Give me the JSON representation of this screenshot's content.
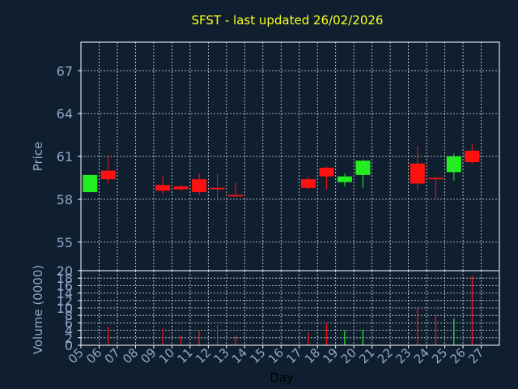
{
  "colors": {
    "background": "#0f1f30",
    "title": "#ffff22",
    "axis_text": "#8fa8c8",
    "grid": "#ffffff",
    "frame": "#ffffff",
    "up": "#22ee22",
    "down": "#ff1111"
  },
  "chart_data": [
    {
      "type": "candlestick",
      "title": "SFST - last updated 26/02/2026",
      "ylabel": "Price",
      "ylim": [
        53.0,
        69.0
      ],
      "yticks": [
        55,
        58,
        61,
        64,
        67
      ],
      "x_ticks": [
        "05",
        "06",
        "07",
        "08",
        "09",
        "10",
        "11",
        "12",
        "13",
        "14",
        "15",
        "16",
        "17",
        "18",
        "19",
        "20",
        "21",
        "22",
        "23",
        "24",
        "25",
        "26",
        "27"
      ],
      "grid": true,
      "candles": [
        {
          "day": "05",
          "open": 58.5,
          "high": 59.7,
          "low": 58.5,
          "close": 59.7
        },
        {
          "day": "06",
          "open": 60.0,
          "high": 61.1,
          "low": 59.1,
          "close": 59.4
        },
        {
          "day": "09",
          "open": 59.0,
          "high": 59.6,
          "low": 58.4,
          "close": 58.6
        },
        {
          "day": "10",
          "open": 58.9,
          "high": 59.0,
          "low": 58.6,
          "close": 58.7
        },
        {
          "day": "11",
          "open": 59.4,
          "high": 59.8,
          "low": 58.3,
          "close": 58.5
        },
        {
          "day": "12",
          "open": 58.8,
          "high": 59.8,
          "low": 57.9,
          "close": 58.7
        },
        {
          "day": "13",
          "open": 58.3,
          "high": 59.2,
          "low": 58.2,
          "close": 58.2
        },
        {
          "day": "17",
          "open": 59.4,
          "high": 59.6,
          "low": 58.7,
          "close": 58.8
        },
        {
          "day": "18",
          "open": 60.2,
          "high": 60.3,
          "low": 58.7,
          "close": 59.6
        },
        {
          "day": "19",
          "open": 59.2,
          "high": 59.8,
          "low": 58.9,
          "close": 59.6
        },
        {
          "day": "20",
          "open": 59.7,
          "high": 60.8,
          "low": 58.8,
          "close": 60.7
        },
        {
          "day": "23",
          "open": 60.5,
          "high": 61.7,
          "low": 58.7,
          "close": 59.1
        },
        {
          "day": "24",
          "open": 59.5,
          "high": 59.5,
          "low": 58.1,
          "close": 59.4
        },
        {
          "day": "25",
          "open": 59.9,
          "high": 61.2,
          "low": 59.3,
          "close": 61.0
        },
        {
          "day": "26",
          "open": 61.4,
          "high": 61.9,
          "low": 60.5,
          "close": 60.6
        }
      ]
    },
    {
      "type": "bar",
      "xlabel": "Day",
      "ylabel": "Volume (0000)",
      "ylim": [
        0,
        20
      ],
      "yticks": [
        0,
        2,
        4,
        6,
        8,
        10,
        12,
        14,
        16,
        18,
        20
      ],
      "x_ticks": [
        "05",
        "06",
        "07",
        "08",
        "09",
        "10",
        "11",
        "12",
        "13",
        "14",
        "15",
        "16",
        "17",
        "18",
        "19",
        "20",
        "21",
        "22",
        "23",
        "24",
        "25",
        "26",
        "27"
      ],
      "grid": true,
      "bars": [
        {
          "day": "06",
          "value": 5.0,
          "direction": "down"
        },
        {
          "day": "09",
          "value": 4.5,
          "direction": "down"
        },
        {
          "day": "10",
          "value": 2.5,
          "direction": "down"
        },
        {
          "day": "11",
          "value": 4.0,
          "direction": "down"
        },
        {
          "day": "12",
          "value": 5.5,
          "direction": "down"
        },
        {
          "day": "13",
          "value": 2.5,
          "direction": "down"
        },
        {
          "day": "17",
          "value": 3.5,
          "direction": "down"
        },
        {
          "day": "18",
          "value": 5.8,
          "direction": "down"
        },
        {
          "day": "19",
          "value": 4.0,
          "direction": "up"
        },
        {
          "day": "20",
          "value": 4.2,
          "direction": "up"
        },
        {
          "day": "23",
          "value": 10.0,
          "direction": "down"
        },
        {
          "day": "24",
          "value": 8.0,
          "direction": "down"
        },
        {
          "day": "25",
          "value": 7.2,
          "direction": "up"
        },
        {
          "day": "26",
          "value": 18.5,
          "direction": "down"
        }
      ]
    }
  ]
}
